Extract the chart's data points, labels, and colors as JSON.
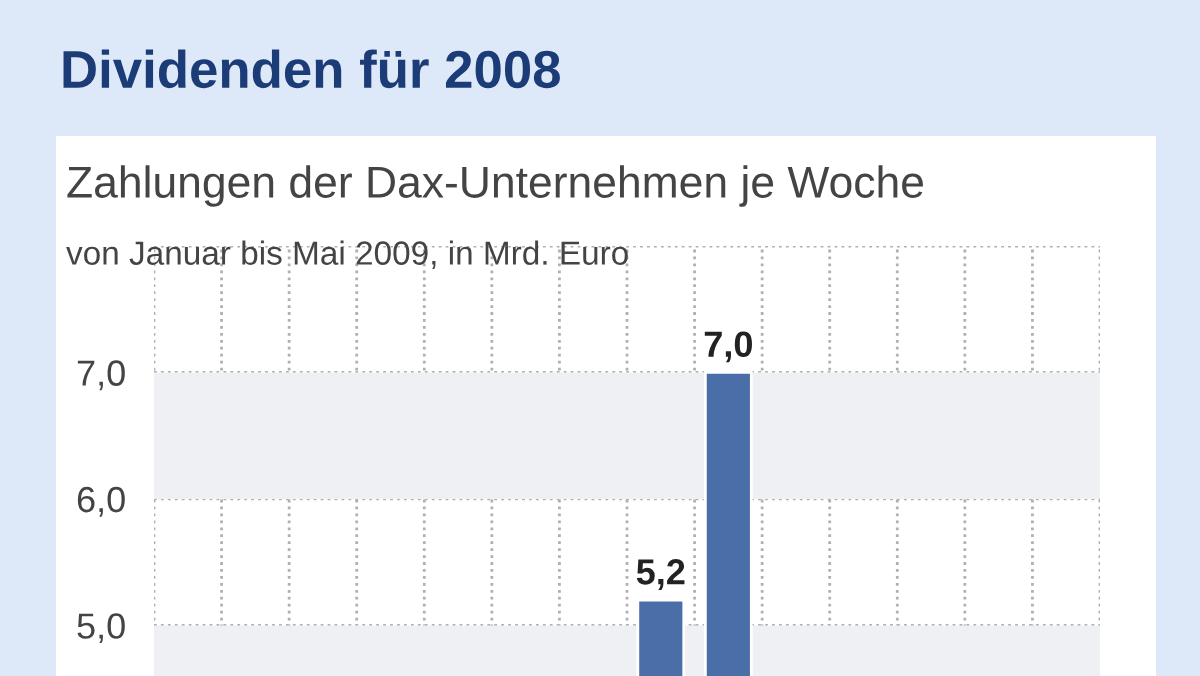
{
  "chart_data": {
    "type": "bar",
    "title": "Dividenden für 2008",
    "subtitle": "Zahlungen der Dax-Unternehmen je Woche",
    "annotations": [
      "von Januar bis Mai 2009, in Mrd. Euro"
    ],
    "categories": [
      null,
      null,
      null,
      null,
      null,
      null,
      null,
      null,
      null,
      null,
      null,
      null,
      null,
      null
    ],
    "values": [
      null,
      null,
      null,
      null,
      null,
      null,
      null,
      5.2,
      7.0,
      null,
      null,
      null,
      null,
      null
    ],
    "value_labels": [
      null,
      null,
      null,
      null,
      null,
      null,
      null,
      "5,2",
      "7,0",
      null,
      null,
      null,
      null,
      null
    ],
    "color": "#4a6fa8",
    "ylim": [
      4.6,
      8.0
    ],
    "yticks": [
      {
        "value": 5,
        "label": "5,0"
      },
      {
        "value": 6,
        "label": "6,0"
      },
      {
        "value": 7,
        "label": "7,0"
      },
      {
        "value": 8,
        "label": null
      }
    ],
    "bands": [
      {
        "axis": "y",
        "from": 6,
        "to": 7,
        "color": "#eef0f3"
      },
      {
        "axis": "y",
        "from": 4.6,
        "to": 5,
        "color": "#eef0f3"
      }
    ],
    "grid": true
  }
}
